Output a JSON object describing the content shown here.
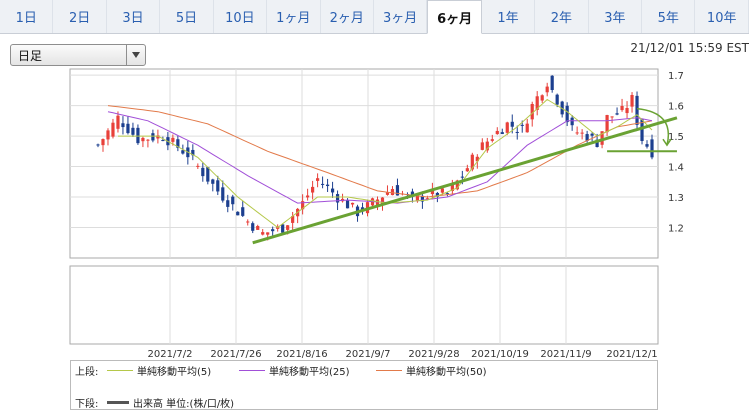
{
  "tabs": [
    {
      "label": "1日",
      "active": false
    },
    {
      "label": "2日",
      "active": false
    },
    {
      "label": "3日",
      "active": false
    },
    {
      "label": "5日",
      "active": false
    },
    {
      "label": "10日",
      "active": false
    },
    {
      "label": "1ヶ月",
      "active": false
    },
    {
      "label": "2ヶ月",
      "active": false
    },
    {
      "label": "3ヶ月",
      "active": false
    },
    {
      "label": "6ヶ月",
      "active": true
    },
    {
      "label": "1年",
      "active": false
    },
    {
      "label": "2年",
      "active": false
    },
    {
      "label": "3年",
      "active": false
    },
    {
      "label": "5年",
      "active": false
    },
    {
      "label": "10年",
      "active": false
    }
  ],
  "period_select": {
    "value": "日足"
  },
  "timestamp": "21/12/01 15:59 EST",
  "legend": {
    "upper_label": "上段:",
    "lower_label": "下段:",
    "ma5": "単純移動平均(5)",
    "ma25": "単純移動平均(25)",
    "ma50": "単純移動平均(50)",
    "volume": "出来高 単位:(株/口/枚)"
  },
  "colors": {
    "up": "#e8403a",
    "down": "#1c3f8f",
    "ma5": "#b5c84a",
    "ma25": "#a14fd8",
    "ma50": "#e27a4a",
    "trend": "#6aa233",
    "volume": "#555555",
    "tab_active_bg": "#ffffff",
    "link": "#2a5fb0"
  },
  "chart_data": {
    "type": "candlestick",
    "x_labels": [
      "2021/7/2",
      "2021/7/26",
      "2021/8/16",
      "2021/9/7",
      "2021/9/28",
      "2021/10/19",
      "2021/11/9",
      "2021/12/1"
    ],
    "y_ticks": [
      1.2,
      1.3,
      1.4,
      1.5,
      1.6,
      1.7
    ],
    "ylim": [
      1.1,
      1.72
    ],
    "grid": true,
    "n_days": 112,
    "close_anchors": [
      [
        0,
        1.47
      ],
      [
        4,
        1.56
      ],
      [
        8,
        1.49
      ],
      [
        13,
        1.5
      ],
      [
        18,
        1.44
      ],
      [
        24,
        1.32
      ],
      [
        30,
        1.22
      ],
      [
        33,
        1.18
      ],
      [
        37,
        1.2
      ],
      [
        41,
        1.28
      ],
      [
        44,
        1.36
      ],
      [
        48,
        1.3
      ],
      [
        52,
        1.25
      ],
      [
        55,
        1.28
      ],
      [
        59,
        1.33
      ],
      [
        63,
        1.29
      ],
      [
        67,
        1.31
      ],
      [
        70,
        1.31
      ],
      [
        73,
        1.37
      ],
      [
        76,
        1.45
      ],
      [
        79,
        1.5
      ],
      [
        82,
        1.54
      ],
      [
        85,
        1.52
      ],
      [
        87,
        1.6
      ],
      [
        90,
        1.68
      ],
      [
        92,
        1.62
      ],
      [
        95,
        1.52
      ],
      [
        98,
        1.5
      ],
      [
        100,
        1.48
      ],
      [
        102,
        1.56
      ],
      [
        105,
        1.58
      ],
      [
        107,
        1.62
      ],
      [
        108,
        1.55
      ],
      [
        109,
        1.49
      ],
      [
        110,
        1.47
      ],
      [
        111,
        1.45
      ]
    ],
    "ma5_anchors": [
      [
        4,
        1.5
      ],
      [
        12,
        1.5
      ],
      [
        20,
        1.43
      ],
      [
        28,
        1.3
      ],
      [
        36,
        1.2
      ],
      [
        44,
        1.3
      ],
      [
        50,
        1.3
      ],
      [
        58,
        1.28
      ],
      [
        66,
        1.29
      ],
      [
        72,
        1.33
      ],
      [
        78,
        1.46
      ],
      [
        84,
        1.53
      ],
      [
        90,
        1.62
      ],
      [
        94,
        1.58
      ],
      [
        100,
        1.5
      ],
      [
        104,
        1.53
      ],
      [
        108,
        1.57
      ],
      [
        111,
        1.52
      ]
    ],
    "ma25_anchors": [
      [
        2,
        1.58
      ],
      [
        10,
        1.55
      ],
      [
        20,
        1.47
      ],
      [
        30,
        1.37
      ],
      [
        40,
        1.28
      ],
      [
        50,
        1.29
      ],
      [
        60,
        1.28
      ],
      [
        70,
        1.3
      ],
      [
        78,
        1.35
      ],
      [
        86,
        1.47
      ],
      [
        94,
        1.55
      ],
      [
        102,
        1.55
      ],
      [
        108,
        1.56
      ],
      [
        111,
        1.55
      ]
    ],
    "ma50_anchors": [
      [
        2,
        1.6
      ],
      [
        12,
        1.58
      ],
      [
        22,
        1.54
      ],
      [
        34,
        1.45
      ],
      [
        46,
        1.38
      ],
      [
        56,
        1.32
      ],
      [
        66,
        1.3
      ],
      [
        76,
        1.32
      ],
      [
        86,
        1.38
      ],
      [
        96,
        1.47
      ],
      [
        104,
        1.53
      ],
      [
        111,
        1.55
      ]
    ],
    "annotations": {
      "trend_line": {
        "from": [
          31,
          1.15
        ],
        "to": [
          116,
          1.56
        ]
      },
      "support_line": {
        "from": [
          102,
          1.45
        ],
        "to": [
          116,
          1.45
        ]
      },
      "arrow": {
        "from": [
          108,
          1.59
        ],
        "to": [
          114,
          1.47
        ]
      }
    }
  }
}
